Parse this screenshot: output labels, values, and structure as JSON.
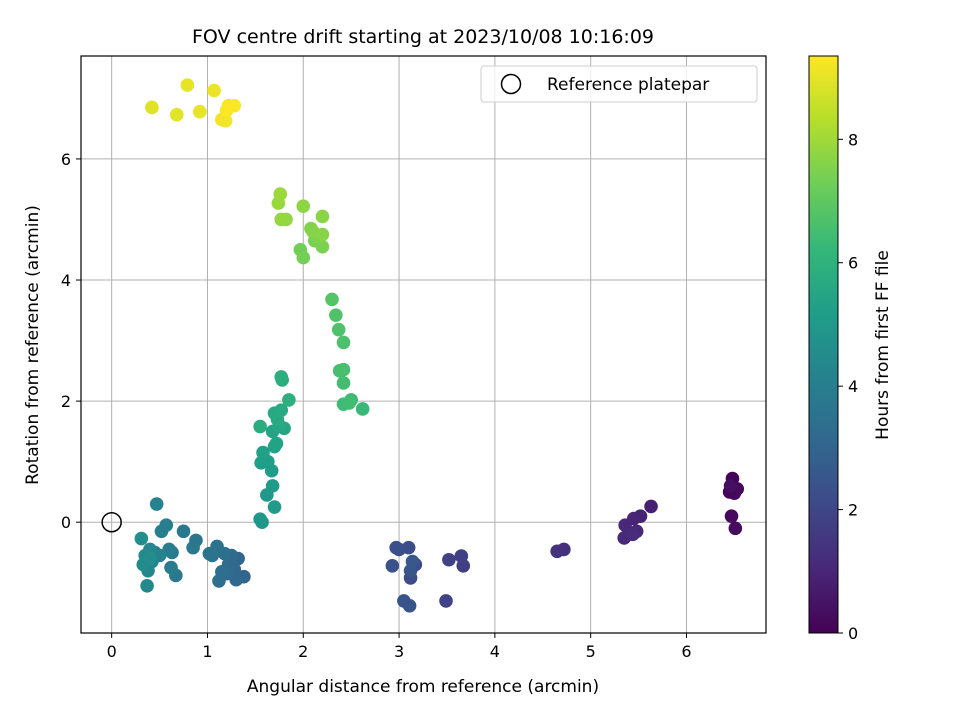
{
  "chart_data": {
    "type": "scatter",
    "title": "FOV centre drift starting at 2023/10/08 10:16:09",
    "xlabel": "Angular distance from reference (arcmin)",
    "ylabel": "Rotation from reference (arcmin)",
    "xlim": [
      -0.32,
      6.83
    ],
    "ylim": [
      -1.83,
      7.7
    ],
    "xticks": [
      0,
      1,
      2,
      3,
      4,
      5,
      6
    ],
    "yticks": [
      0,
      2,
      4,
      6
    ],
    "grid": true,
    "legend": {
      "placement": "top-right",
      "entries": [
        "Reference platepar"
      ]
    },
    "reference_point": {
      "x": 0,
      "y": 0
    },
    "colorbar": {
      "label": "Hours from first FF file",
      "colormap": "viridis",
      "range": [
        0,
        9.35
      ],
      "ticks": [
        0,
        2,
        4,
        6,
        8
      ]
    },
    "colormap_stops": [
      "#440154",
      "#482878",
      "#3e4989",
      "#31688e",
      "#26828e",
      "#1f9e89",
      "#35b779",
      "#6ece58",
      "#b5de2b",
      "#fde725"
    ],
    "points": [
      {
        "x": 6.45,
        "y": 0.5,
        "c": 0.05
      },
      {
        "x": 6.48,
        "y": 0.72,
        "c": 0.1
      },
      {
        "x": 6.5,
        "y": 0.48,
        "c": 0.15
      },
      {
        "x": 6.53,
        "y": 0.55,
        "c": 0.2
      },
      {
        "x": 6.47,
        "y": 0.1,
        "c": 0.25
      },
      {
        "x": 6.51,
        "y": -0.1,
        "c": 0.3
      },
      {
        "x": 6.46,
        "y": 0.6,
        "c": 0.35
      },
      {
        "x": 5.63,
        "y": 0.26,
        "c": 0.85
      },
      {
        "x": 5.52,
        "y": 0.1,
        "c": 0.9
      },
      {
        "x": 5.45,
        "y": 0.06,
        "c": 0.95
      },
      {
        "x": 5.48,
        "y": -0.15,
        "c": 1.0
      },
      {
        "x": 5.36,
        "y": -0.05,
        "c": 1.05
      },
      {
        "x": 5.35,
        "y": -0.26,
        "c": 1.1
      },
      {
        "x": 5.44,
        "y": -0.2,
        "c": 1.15
      },
      {
        "x": 4.72,
        "y": -0.45,
        "c": 1.35
      },
      {
        "x": 4.65,
        "y": -0.48,
        "c": 1.4
      },
      {
        "x": 3.67,
        "y": -0.72,
        "c": 1.75
      },
      {
        "x": 3.65,
        "y": -0.56,
        "c": 1.8
      },
      {
        "x": 3.52,
        "y": -0.62,
        "c": 1.85
      },
      {
        "x": 3.49,
        "y": -1.3,
        "c": 1.9
      },
      {
        "x": 3.17,
        "y": -0.7,
        "c": 2.1
      },
      {
        "x": 3.12,
        "y": -0.92,
        "c": 2.15
      },
      {
        "x": 3.1,
        "y": -0.42,
        "c": 2.2
      },
      {
        "x": 3.0,
        "y": -0.45,
        "c": 2.25
      },
      {
        "x": 2.97,
        "y": -0.42,
        "c": 2.3
      },
      {
        "x": 2.93,
        "y": -0.72,
        "c": 2.35
      },
      {
        "x": 3.05,
        "y": -1.3,
        "c": 2.4
      },
      {
        "x": 3.11,
        "y": -1.38,
        "c": 2.45
      },
      {
        "x": 3.12,
        "y": -0.8,
        "c": 2.5
      },
      {
        "x": 3.14,
        "y": -0.65,
        "c": 2.55
      },
      {
        "x": 1.38,
        "y": -0.9,
        "c": 3.0
      },
      {
        "x": 1.32,
        "y": -0.6,
        "c": 3.05
      },
      {
        "x": 1.3,
        "y": -0.95,
        "c": 3.1
      },
      {
        "x": 1.28,
        "y": -0.78,
        "c": 3.15
      },
      {
        "x": 1.25,
        "y": -0.55,
        "c": 3.2
      },
      {
        "x": 1.22,
        "y": -0.7,
        "c": 3.25
      },
      {
        "x": 1.2,
        "y": -0.85,
        "c": 3.3
      },
      {
        "x": 1.15,
        "y": -0.82,
        "c": 3.35
      },
      {
        "x": 1.12,
        "y": -0.97,
        "c": 3.4
      },
      {
        "x": 1.18,
        "y": -0.52,
        "c": 3.45
      },
      {
        "x": 1.1,
        "y": -0.4,
        "c": 3.5
      },
      {
        "x": 1.05,
        "y": -0.55,
        "c": 3.55
      },
      {
        "x": 1.02,
        "y": -0.52,
        "c": 3.6
      },
      {
        "x": 0.88,
        "y": -0.3,
        "c": 3.65
      },
      {
        "x": 0.85,
        "y": -0.42,
        "c": 3.7
      },
      {
        "x": 0.75,
        "y": -0.15,
        "c": 3.75
      },
      {
        "x": 0.67,
        "y": -0.88,
        "c": 3.8
      },
      {
        "x": 0.63,
        "y": -0.5,
        "c": 3.85
      },
      {
        "x": 0.62,
        "y": -0.75,
        "c": 3.9
      },
      {
        "x": 0.6,
        "y": -0.45,
        "c": 3.95
      },
      {
        "x": 0.57,
        "y": -0.05,
        "c": 4.0
      },
      {
        "x": 0.52,
        "y": -0.15,
        "c": 4.05
      },
      {
        "x": 0.5,
        "y": -0.55,
        "c": 4.1
      },
      {
        "x": 0.47,
        "y": 0.3,
        "c": 4.15
      },
      {
        "x": 0.45,
        "y": -0.5,
        "c": 4.2
      },
      {
        "x": 0.42,
        "y": -0.65,
        "c": 4.25
      },
      {
        "x": 0.4,
        "y": -0.45,
        "c": 4.3
      },
      {
        "x": 0.38,
        "y": -0.8,
        "c": 4.35
      },
      {
        "x": 0.37,
        "y": -1.05,
        "c": 4.4
      },
      {
        "x": 0.35,
        "y": -0.55,
        "c": 4.45
      },
      {
        "x": 0.33,
        "y": -0.7,
        "c": 4.5
      },
      {
        "x": 0.31,
        "y": -0.27,
        "c": 4.55
      },
      {
        "x": 0.4,
        "y": -0.6,
        "c": 4.6
      },
      {
        "x": 1.55,
        "y": 0.05,
        "c": 4.9
      },
      {
        "x": 1.57,
        "y": 0.0,
        "c": 4.95
      },
      {
        "x": 1.62,
        "y": 0.45,
        "c": 5.0
      },
      {
        "x": 1.7,
        "y": 0.25,
        "c": 5.05
      },
      {
        "x": 1.68,
        "y": 0.6,
        "c": 5.1
      },
      {
        "x": 1.67,
        "y": 0.85,
        "c": 5.15
      },
      {
        "x": 1.63,
        "y": 1.0,
        "c": 5.2
      },
      {
        "x": 1.56,
        "y": 0.98,
        "c": 5.25
      },
      {
        "x": 1.58,
        "y": 1.15,
        "c": 5.3
      },
      {
        "x": 1.7,
        "y": 1.25,
        "c": 5.35
      },
      {
        "x": 1.72,
        "y": 1.3,
        "c": 5.4
      },
      {
        "x": 1.68,
        "y": 1.5,
        "c": 5.45
      },
      {
        "x": 1.8,
        "y": 1.55,
        "c": 5.5
      },
      {
        "x": 1.75,
        "y": 1.6,
        "c": 5.55
      },
      {
        "x": 1.73,
        "y": 1.7,
        "c": 5.6
      },
      {
        "x": 1.7,
        "y": 1.8,
        "c": 5.65
      },
      {
        "x": 1.77,
        "y": 1.85,
        "c": 5.7
      },
      {
        "x": 1.55,
        "y": 1.58,
        "c": 5.75
      },
      {
        "x": 1.78,
        "y": 2.35,
        "c": 5.8
      },
      {
        "x": 1.77,
        "y": 2.4,
        "c": 5.85
      },
      {
        "x": 1.85,
        "y": 2.02,
        "c": 5.9
      },
      {
        "x": 2.62,
        "y": 1.87,
        "c": 6.3
      },
      {
        "x": 2.5,
        "y": 2.02,
        "c": 6.35
      },
      {
        "x": 2.42,
        "y": 1.95,
        "c": 6.4
      },
      {
        "x": 2.48,
        "y": 1.97,
        "c": 6.45
      },
      {
        "x": 2.42,
        "y": 2.3,
        "c": 6.5
      },
      {
        "x": 2.38,
        "y": 2.5,
        "c": 6.55
      },
      {
        "x": 2.42,
        "y": 2.52,
        "c": 6.6
      },
      {
        "x": 2.42,
        "y": 2.97,
        "c": 6.65
      },
      {
        "x": 2.37,
        "y": 3.18,
        "c": 6.7
      },
      {
        "x": 2.34,
        "y": 3.42,
        "c": 6.75
      },
      {
        "x": 2.3,
        "y": 3.68,
        "c": 6.8
      },
      {
        "x": 1.97,
        "y": 4.5,
        "c": 7.3
      },
      {
        "x": 2.0,
        "y": 4.37,
        "c": 7.35
      },
      {
        "x": 2.12,
        "y": 4.65,
        "c": 7.4
      },
      {
        "x": 2.2,
        "y": 4.55,
        "c": 7.45
      },
      {
        "x": 2.15,
        "y": 4.7,
        "c": 7.5
      },
      {
        "x": 2.08,
        "y": 4.85,
        "c": 7.55
      },
      {
        "x": 2.1,
        "y": 4.8,
        "c": 7.6
      },
      {
        "x": 2.2,
        "y": 4.75,
        "c": 7.65
      },
      {
        "x": 2.2,
        "y": 5.05,
        "c": 7.7
      },
      {
        "x": 2.0,
        "y": 5.22,
        "c": 7.75
      },
      {
        "x": 1.82,
        "y": 5.0,
        "c": 7.8
      },
      {
        "x": 1.77,
        "y": 5.0,
        "c": 7.85
      },
      {
        "x": 1.74,
        "y": 5.27,
        "c": 7.9
      },
      {
        "x": 1.76,
        "y": 5.42,
        "c": 7.95
      },
      {
        "x": 0.42,
        "y": 6.85,
        "c": 8.9
      },
      {
        "x": 0.68,
        "y": 6.73,
        "c": 8.95
      },
      {
        "x": 0.79,
        "y": 7.22,
        "c": 9.0
      },
      {
        "x": 0.92,
        "y": 6.78,
        "c": 9.05
      },
      {
        "x": 1.07,
        "y": 7.13,
        "c": 9.1
      },
      {
        "x": 1.15,
        "y": 6.65,
        "c": 9.15
      },
      {
        "x": 1.19,
        "y": 6.63,
        "c": 9.2
      },
      {
        "x": 1.22,
        "y": 6.88,
        "c": 9.25
      },
      {
        "x": 1.28,
        "y": 6.88,
        "c": 9.3
      },
      {
        "x": 1.2,
        "y": 6.8,
        "c": 9.32
      }
    ]
  }
}
